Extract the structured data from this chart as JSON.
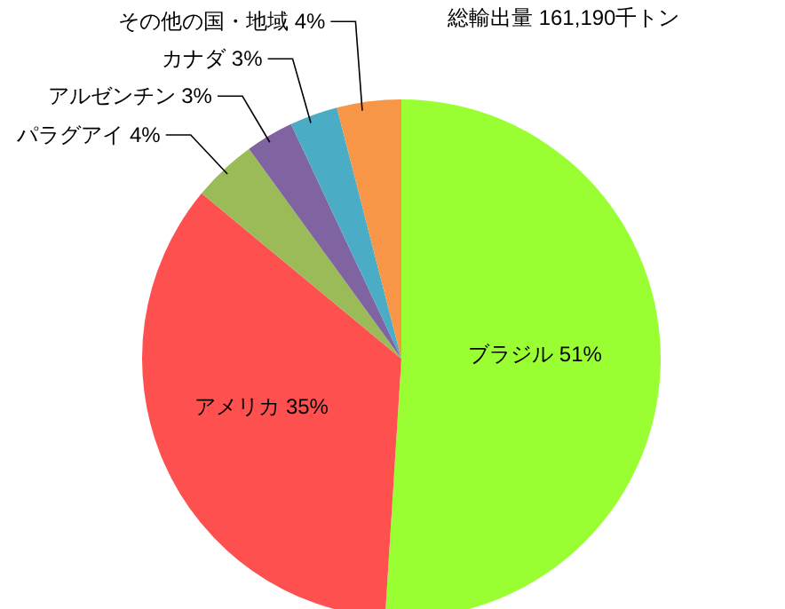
{
  "chart_data": {
    "type": "pie",
    "annotations": [
      "総輸出量 161,190千トン"
    ],
    "categories": [
      "ブラジル",
      "アメリカ",
      "パラグアイ",
      "アルゼンチン",
      "カナダ",
      "その他の国・地域"
    ],
    "values": [
      51,
      35,
      4,
      3,
      3,
      4
    ],
    "value_labels": [
      "51%",
      "35%",
      "4%",
      "3%",
      "3%",
      "4%"
    ],
    "colors": [
      "#99ff33",
      "#ff5050",
      "#9bbb59",
      "#8064a2",
      "#4bacc6",
      "#f79646"
    ],
    "legend": false
  }
}
